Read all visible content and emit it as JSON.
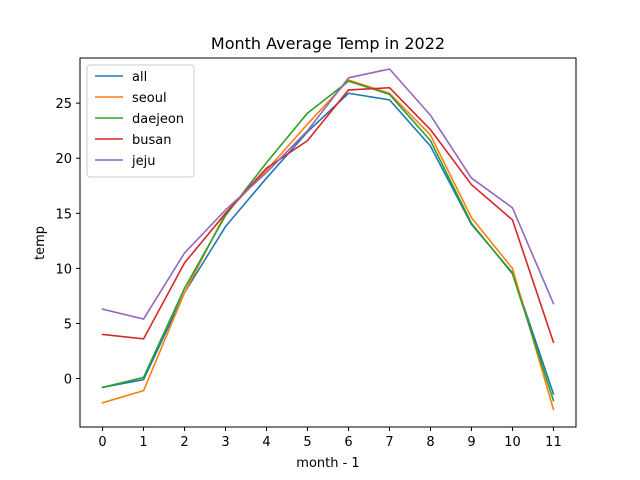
{
  "chart_data": {
    "type": "line",
    "title": "Month Average Temp in 2022",
    "xlabel": "month - 1",
    "ylabel": "temp",
    "x": [
      0,
      1,
      2,
      3,
      4,
      5,
      6,
      7,
      8,
      9,
      10,
      11
    ],
    "x_ticks": [
      "0",
      "1",
      "2",
      "3",
      "4",
      "5",
      "6",
      "7",
      "8",
      "9",
      "10",
      "11"
    ],
    "y_ticks": [
      "0",
      "5",
      "10",
      "15",
      "20",
      "25"
    ],
    "xlim": [
      -0.55,
      11.55
    ],
    "ylim": [
      -4.4,
      29.1
    ],
    "grid": false,
    "legend_position": "upper-left",
    "series": [
      {
        "name": "all",
        "color": "#1f77b4",
        "values": [
          -0.8,
          -0.1,
          7.8,
          13.8,
          18.2,
          22.4,
          25.9,
          25.3,
          21.1,
          14.0,
          9.6,
          -1.4
        ]
      },
      {
        "name": "seoul",
        "color": "#ff7f0e",
        "values": [
          -2.2,
          -1.1,
          7.8,
          15.0,
          18.9,
          23.1,
          27.1,
          25.9,
          22.1,
          14.6,
          10.0,
          -2.8
        ]
      },
      {
        "name": "daejeon",
        "color": "#2ca02c",
        "values": [
          -0.8,
          0.1,
          8.2,
          14.8,
          19.6,
          24.1,
          27.0,
          25.8,
          21.6,
          14.1,
          9.5,
          -2.0
        ]
      },
      {
        "name": "busan",
        "color": "#d62728",
        "values": [
          4.0,
          3.6,
          10.5,
          15.0,
          19.1,
          21.6,
          26.2,
          26.4,
          22.6,
          17.6,
          14.4,
          3.3
        ]
      },
      {
        "name": "jeju",
        "color": "#9467bd",
        "values": [
          6.3,
          5.4,
          11.4,
          15.3,
          18.7,
          22.5,
          27.3,
          28.1,
          23.9,
          18.2,
          15.5,
          6.8
        ]
      }
    ]
  }
}
